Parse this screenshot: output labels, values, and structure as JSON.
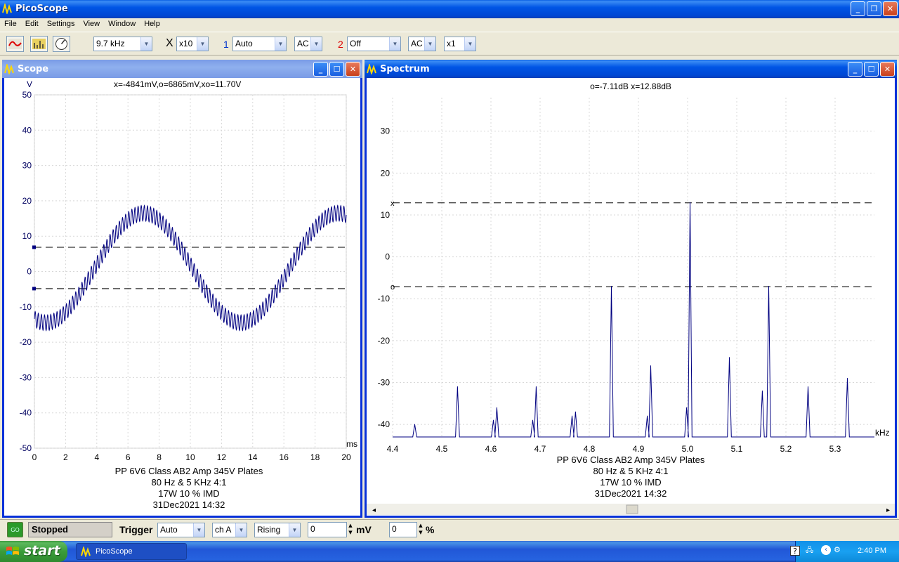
{
  "app": {
    "title": "PicoScope"
  },
  "menu": [
    "File",
    "Edit",
    "Settings",
    "View",
    "Window",
    "Help"
  ],
  "toolbar": {
    "timebase": "9.7 kHz",
    "mult_symbol": "X",
    "multiplier": "x10",
    "ch1_label": "1",
    "ch1_range": "Auto",
    "ch1_coupling": "AC",
    "ch2_label": "2",
    "ch2_range": "Off",
    "ch2_coupling": "AC",
    "ch2_mult": "x1",
    "ch1_color": "#0033cc",
    "ch2_color": "#dd0000"
  },
  "scope": {
    "title": "Scope",
    "readout": "x=-4841mV,o=6865mV,xo=11.70V",
    "y_unit": "V",
    "x_unit": "ms",
    "y_ticks": [
      "50",
      "40",
      "30",
      "20",
      "10",
      "0",
      "-10",
      "-20",
      "-30",
      "-40",
      "-50"
    ],
    "x_ticks": [
      "0",
      "2",
      "4",
      "6",
      "8",
      "10",
      "12",
      "14",
      "16",
      "18",
      "20"
    ],
    "caption": [
      "PP 6V6 Class AB2 Amp 345V Plates",
      "80 Hz & 5 KHz 4:1",
      "17W 10 % IMD",
      "31Dec2021  14:32"
    ]
  },
  "spectrum": {
    "title": "Spectrum",
    "readout": "o=-7.11dB  x=12.88dB",
    "x_unit": "kHz",
    "y_ticks": [
      "30",
      "20",
      "10",
      "0",
      "-10",
      "-20",
      "-30",
      "-40"
    ],
    "x_ticks": [
      "4.4",
      "4.5",
      "4.6",
      "4.7",
      "4.8",
      "4.9",
      "5.0",
      "5.1",
      "5.2",
      "5.3"
    ],
    "cursor_x_marker": "x",
    "cursor_o_marker": "o",
    "caption": [
      "PP 6V6 Class AB2 Amp 345V Plates",
      "80 Hz & 5 KHz 4:1",
      "17W 10 % IMD",
      "31Dec2021  14:32"
    ]
  },
  "chart_data": [
    {
      "type": "line",
      "title": "",
      "xlabel": "ms",
      "ylabel": "V",
      "xlim": [
        0,
        20
      ],
      "ylim": [
        -50,
        50
      ],
      "grid": true,
      "series": [
        {
          "name": "",
          "description_of_shape": null,
          "low_freq_hz": 80,
          "low_amp_v": 15.5,
          "low_offset_v": 1.0,
          "high_freq_khz": 5,
          "high_amp_v": 2.2
        }
      ],
      "cursors_v": {
        "x": -4.841,
        "o": 6.865
      }
    },
    {
      "type": "line",
      "title": "",
      "xlabel": "kHz",
      "ylabel": "",
      "xlim": [
        4.4,
        5.38
      ],
      "ylim": [
        -43,
        38
      ],
      "grid": true,
      "floor_db": -43,
      "peaks": [
        {
          "x": 4.445,
          "y": -40
        },
        {
          "x": 4.532,
          "y": -31
        },
        {
          "x": 4.605,
          "y": -39
        },
        {
          "x": 4.612,
          "y": -36
        },
        {
          "x": 4.685,
          "y": -39
        },
        {
          "x": 4.692,
          "y": -31
        },
        {
          "x": 4.765,
          "y": -38
        },
        {
          "x": 4.772,
          "y": -37
        },
        {
          "x": 4.845,
          "y": -7
        },
        {
          "x": 4.918,
          "y": -38
        },
        {
          "x": 4.925,
          "y": -26
        },
        {
          "x": 4.998,
          "y": -36
        },
        {
          "x": 5.005,
          "y": 13
        },
        {
          "x": 5.085,
          "y": -24
        },
        {
          "x": 5.152,
          "y": -32
        },
        {
          "x": 5.165,
          "y": -7
        },
        {
          "x": 5.245,
          "y": -31
        },
        {
          "x": 5.325,
          "y": -29
        }
      ],
      "cursors_db": {
        "x": 12.88,
        "o": -7.11
      }
    }
  ],
  "status": {
    "go": "GO",
    "state": "Stopped",
    "trigger_label": "Trigger",
    "trigger_mode": "Auto",
    "trigger_channel": "ch A",
    "trigger_edge": "Rising",
    "trigger_level": "0",
    "level_unit": "mV",
    "pretrigger": "0",
    "pretrigger_unit": "%"
  },
  "taskbar": {
    "start": "start",
    "task": "PicoScope",
    "clock": "2:40 PM"
  }
}
